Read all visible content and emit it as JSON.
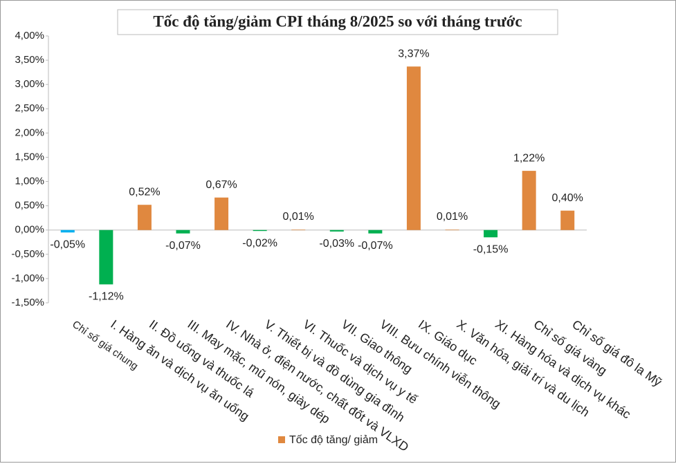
{
  "chart_data": {
    "type": "bar",
    "title": "Tốc độ tăng/giảm CPI tháng 8/2025 so với tháng trước",
    "categories": [
      "Chỉ số giá chung",
      "I. Hàng ăn và dịch vụ ăn uống",
      "II. Đồ uống và thuốc lá",
      "III. May mặc, mũ nón, giày dép",
      "IV. Nhà ở, điện nước, chất đốt và VLXD",
      "V. Thiết bị và đồ dùng gia đình",
      "VI. Thuốc và dịch vụ y tế",
      "VII. Giao thông",
      "VIII. Bưu chính viễn thông",
      "IX. Giáo dục",
      "X. Văn hóa, giải trí và du lịch",
      "XI. Hàng hóa và dịch vụ khác",
      "Chỉ số giá vàng",
      "Chỉ số giá đô la Mỹ"
    ],
    "series": [
      {
        "name": "Tốc độ tăng/ giảm",
        "color": "#e0883f",
        "colors": [
          "#00b0f0",
          "#00b050",
          "#e0883f",
          "#00b050",
          "#e0883f",
          "#00b050",
          "#e0883f",
          "#00b050",
          "#00b050",
          "#e0883f",
          "#e0883f",
          "#00b050",
          "#e0883f",
          "#e0883f"
        ],
        "values": [
          -0.05,
          -1.12,
          0.52,
          -0.07,
          0.67,
          -0.02,
          0.01,
          -0.03,
          -0.07,
          3.37,
          0.01,
          -0.15,
          1.22,
          0.4
        ],
        "value_labels": [
          "-0,05%",
          "-1,12%",
          "0,52%",
          "-0,07%",
          "0,67%",
          "-0,02%",
          "0,01%",
          "-0,03%",
          "-0,07%",
          "3,37%",
          "0,01%",
          "-0,15%",
          "1,22%",
          "0,40%"
        ]
      }
    ],
    "ylim": [
      -1.5,
      4
    ],
    "yticks": [
      {
        "value": -1.5,
        "label": "-1,50%"
      },
      {
        "value": -1,
        "label": "-1,00%"
      },
      {
        "value": -0.5,
        "label": "-0,50%"
      },
      {
        "value": 0,
        "label": "0,00%"
      },
      {
        "value": 0.5,
        "label": "0,50%"
      },
      {
        "value": 1,
        "label": "1,00%"
      },
      {
        "value": 1.5,
        "label": "1,50%"
      },
      {
        "value": 2,
        "label": "2,00%"
      },
      {
        "value": 2.5,
        "label": "2,50%"
      },
      {
        "value": 3,
        "label": "3,00%"
      },
      {
        "value": 3.5,
        "label": "3,50%"
      },
      {
        "value": 4,
        "label": "4,00%"
      }
    ]
  }
}
